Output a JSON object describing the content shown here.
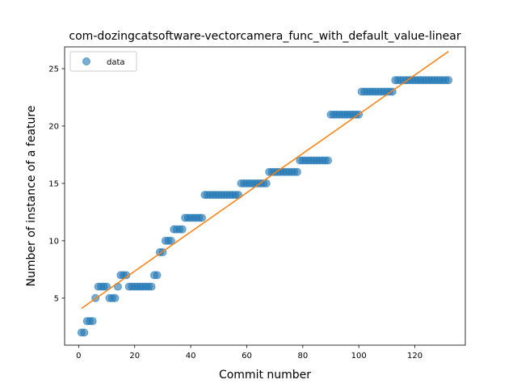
{
  "chart_data": {
    "type": "scatter",
    "title": "com-dozingcatsoftware-vectorcamera_func_with_default_value-linear",
    "xlabel": "Commit number",
    "ylabel": "Number of instance of a feature",
    "xlim": [
      -5,
      138
    ],
    "ylim": [
      0.9,
      26.9
    ],
    "xticks": [
      0,
      20,
      40,
      60,
      80,
      100,
      120
    ],
    "yticks": [
      5,
      10,
      15,
      20,
      25
    ],
    "legend": {
      "placement": "top-left",
      "entries": [
        "data"
      ]
    },
    "colors": {
      "points": "#1f77b4",
      "fit": "#ff7f0e"
    },
    "series": [
      {
        "name": "data",
        "kind": "points",
        "x": [
          1,
          2,
          3,
          4,
          5,
          6,
          7,
          8,
          9,
          10,
          11,
          12,
          13,
          14,
          15,
          16,
          17,
          18,
          19,
          20,
          21,
          22,
          23,
          24,
          25,
          26,
          27,
          28,
          29,
          30,
          31,
          32,
          33,
          34,
          35,
          36,
          37,
          38,
          39,
          40,
          41,
          42,
          43,
          44,
          45,
          46,
          47,
          48,
          49,
          50,
          51,
          52,
          53,
          54,
          55,
          56,
          57,
          58,
          59,
          60,
          61,
          62,
          63,
          64,
          65,
          66,
          67,
          68,
          69,
          70,
          71,
          72,
          73,
          74,
          75,
          76,
          77,
          78,
          79,
          80,
          81,
          82,
          83,
          84,
          85,
          86,
          87,
          88,
          89,
          90,
          91,
          92,
          93,
          94,
          95,
          96,
          97,
          98,
          99,
          100,
          101,
          102,
          103,
          104,
          105,
          106,
          107,
          108,
          109,
          110,
          111,
          112,
          113,
          114,
          115,
          116,
          117,
          118,
          119,
          120,
          121,
          122,
          123,
          124,
          125,
          126,
          127,
          128,
          129,
          130,
          131,
          132
        ],
        "y": [
          2,
          2,
          3,
          3,
          3,
          5,
          6,
          6,
          6,
          6,
          5,
          5,
          5,
          6,
          7,
          7,
          7,
          6,
          6,
          6,
          6,
          6,
          6,
          6,
          6,
          6,
          7,
          7,
          9,
          9,
          10,
          10,
          10,
          11,
          11,
          11,
          11,
          12,
          12,
          12,
          12,
          12,
          12,
          12,
          14,
          14,
          14,
          14,
          14,
          14,
          14,
          14,
          14,
          14,
          14,
          14,
          14,
          15,
          15,
          15,
          15,
          15,
          15,
          15,
          15,
          15,
          15,
          16,
          16,
          16,
          16,
          16,
          16,
          16,
          16,
          16,
          16,
          16,
          17,
          17,
          17,
          17,
          17,
          17,
          17,
          17,
          17,
          17,
          17,
          21,
          21,
          21,
          21,
          21,
          21,
          21,
          21,
          21,
          21,
          21,
          23,
          23,
          23,
          23,
          23,
          23,
          23,
          23,
          23,
          23,
          23,
          23,
          24,
          24,
          24,
          24,
          24,
          24,
          24,
          24,
          24,
          24,
          24,
          24,
          24,
          24,
          24,
          24,
          24,
          24,
          24,
          24
        ]
      },
      {
        "kind": "fit",
        "x": [
          1,
          132
        ],
        "y": [
          4.1,
          26.5
        ]
      }
    ]
  }
}
